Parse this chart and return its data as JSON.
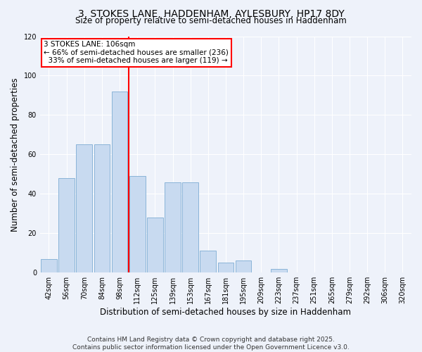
{
  "title": "3, STOKES LANE, HADDENHAM, AYLESBURY, HP17 8DY",
  "subtitle": "Size of property relative to semi-detached houses in Haddenham",
  "xlabel": "Distribution of semi-detached houses by size in Haddenham",
  "ylabel": "Number of semi-detached properties",
  "categories": [
    "42sqm",
    "56sqm",
    "70sqm",
    "84sqm",
    "98sqm",
    "112sqm",
    "125sqm",
    "139sqm",
    "153sqm",
    "167sqm",
    "181sqm",
    "195sqm",
    "209sqm",
    "223sqm",
    "237sqm",
    "251sqm",
    "265sqm",
    "279sqm",
    "292sqm",
    "306sqm",
    "320sqm"
  ],
  "values": [
    7,
    48,
    65,
    65,
    92,
    49,
    28,
    46,
    46,
    11,
    5,
    6,
    0,
    2,
    0,
    0,
    0,
    0,
    0,
    0,
    0
  ],
  "bar_color": "#c8daf0",
  "bar_edge_color": "#8ab4d8",
  "property_label": "3 STOKES LANE: 106sqm",
  "pct_smaller": 66,
  "n_smaller": 236,
  "pct_larger": 33,
  "n_larger": 119,
  "vline_color": "red",
  "ylim": [
    0,
    120
  ],
  "yticks": [
    0,
    20,
    40,
    60,
    80,
    100,
    120
  ],
  "footer": "Contains HM Land Registry data © Crown copyright and database right 2025.\nContains public sector information licensed under the Open Government Licence v3.0.",
  "background_color": "#eef2fa",
  "grid_color": "#ffffff",
  "title_fontsize": 10,
  "subtitle_fontsize": 8.5,
  "axis_label_fontsize": 8.5,
  "tick_fontsize": 7,
  "footer_fontsize": 6.5,
  "annotation_fontsize": 7.5
}
